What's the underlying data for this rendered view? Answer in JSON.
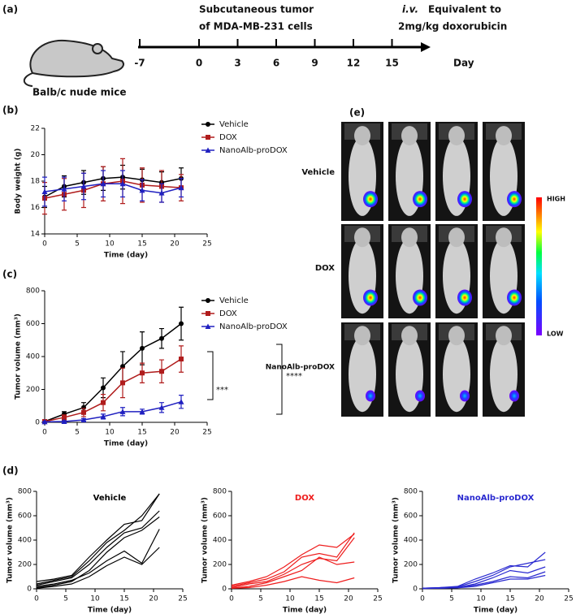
{
  "panel_labels": [
    "(a)",
    "(b)",
    "(c)",
    "(d)",
    "(e)"
  ],
  "timeline": {
    "tumor_line1": "Subcutaneous tumor",
    "tumor_line2": "of MDA-MB-231 cells",
    "iv": "i.v.",
    "iv_rest": "Equivalent to",
    "dose": "2mg/kg doxorubicin",
    "mouse": "Balb/c nude mice",
    "unit": "Day",
    "ticks": [
      -7,
      0,
      3,
      6,
      9,
      12,
      15
    ]
  },
  "chart_data": [
    {
      "type": "line",
      "xlabel": "Time (day)",
      "ylabel": "Body weight (g)",
      "x": [
        0,
        3,
        6,
        9,
        12,
        15,
        18,
        21
      ],
      "xlim": [
        0,
        25
      ],
      "xticks": [
        0,
        5,
        10,
        15,
        20,
        25
      ],
      "ylim": [
        14,
        22
      ],
      "yticks": [
        14,
        16,
        18,
        20,
        22
      ],
      "legend": true,
      "series": [
        {
          "name": "Vehicle",
          "color": "#000000",
          "marker": "circle",
          "values": [
            16.8,
            17.6,
            17.9,
            18.2,
            18.3,
            18.1,
            17.9,
            18.2
          ],
          "errors": [
            0.8,
            0.8,
            0.9,
            0.9,
            0.9,
            0.8,
            0.8,
            0.8
          ]
        },
        {
          "name": "DOX",
          "color": "#b01c1c",
          "marker": "square",
          "values": [
            16.7,
            17.0,
            17.3,
            17.8,
            18.0,
            17.7,
            17.6,
            17.5
          ],
          "errors": [
            1.2,
            1.2,
            1.3,
            1.3,
            1.7,
            1.3,
            1.2,
            1.0
          ]
        },
        {
          "name": "NanoAlb-proDOX",
          "color": "#2020c0",
          "marker": "triangle",
          "values": [
            17.2,
            17.4,
            17.6,
            17.8,
            17.8,
            17.3,
            17.1,
            17.5
          ],
          "errors": [
            1.1,
            0.9,
            1.0,
            1.0,
            1.0,
            0.8,
            0.7,
            0.7
          ]
        }
      ]
    },
    {
      "type": "line",
      "xlabel": "Time (day)",
      "ylabel": "Tumor volume (mm³)",
      "x": [
        0,
        3,
        6,
        9,
        12,
        15,
        18,
        21
      ],
      "xlim": [
        0,
        25
      ],
      "xticks": [
        0,
        5,
        10,
        15,
        20,
        25
      ],
      "ylim": [
        0,
        800
      ],
      "yticks": [
        0,
        200,
        400,
        600,
        800
      ],
      "legend": true,
      "annotations": [
        "***",
        "****"
      ],
      "series": [
        {
          "name": "Vehicle",
          "color": "#000000",
          "marker": "circle",
          "values": [
            5,
            50,
            90,
            210,
            340,
            450,
            510,
            600
          ],
          "errors": [
            5,
            15,
            30,
            60,
            90,
            100,
            60,
            100
          ]
        },
        {
          "name": "DOX",
          "color": "#b01c1c",
          "marker": "square",
          "values": [
            5,
            30,
            60,
            120,
            240,
            300,
            310,
            385
          ],
          "errors": [
            3,
            15,
            25,
            50,
            90,
            60,
            70,
            80
          ]
        },
        {
          "name": "NanoAlb-proDOX",
          "color": "#2020c0",
          "marker": "triangle",
          "values": [
            3,
            5,
            15,
            35,
            65,
            65,
            90,
            125
          ],
          "errors": [
            2,
            5,
            8,
            15,
            25,
            15,
            30,
            40
          ]
        }
      ]
    },
    {
      "type": "line",
      "title": "Vehicle",
      "color": "#000000",
      "xlabel": "Time (day)",
      "ylabel": "Tumor volume (mm³)",
      "x": [
        0,
        3,
        6,
        9,
        12,
        15,
        18,
        21
      ],
      "xlim": [
        0,
        25
      ],
      "xticks": [
        0,
        5,
        10,
        15,
        20,
        25
      ],
      "ylim": [
        0,
        800
      ],
      "yticks": [
        0,
        200,
        400,
        600,
        800
      ],
      "series": [
        {
          "values": [
            60,
            80,
            110,
            260,
            400,
            530,
            560,
            780
          ]
        },
        {
          "values": [
            40,
            70,
            100,
            230,
            380,
            480,
            600,
            780
          ]
        },
        {
          "values": [
            30,
            60,
            90,
            200,
            340,
            460,
            500,
            640
          ]
        },
        {
          "values": [
            10,
            30,
            60,
            150,
            300,
            420,
            480,
            590
          ]
        },
        {
          "values": [
            20,
            40,
            70,
            130,
            230,
            310,
            210,
            490
          ]
        },
        {
          "values": [
            5,
            20,
            40,
            100,
            190,
            260,
            200,
            340
          ]
        }
      ]
    },
    {
      "type": "line",
      "title": "DOX",
      "color": "#ee1c1c",
      "xlabel": "Time (day)",
      "ylabel": "Tumor volume (mm³)",
      "x": [
        0,
        3,
        6,
        9,
        12,
        15,
        18,
        21
      ],
      "xlim": [
        0,
        25
      ],
      "xticks": [
        0,
        5,
        10,
        15,
        20,
        25
      ],
      "ylim": [
        0,
        800
      ],
      "yticks": [
        0,
        200,
        400,
        600,
        800
      ],
      "series": [
        {
          "values": [
            30,
            60,
            100,
            180,
            280,
            360,
            340,
            450
          ]
        },
        {
          "values": [
            20,
            50,
            80,
            140,
            260,
            290,
            260,
            460
          ]
        },
        {
          "values": [
            10,
            40,
            60,
            120,
            200,
            250,
            230,
            420
          ]
        },
        {
          "values": [
            5,
            20,
            50,
            100,
            150,
            260,
            200,
            220
          ]
        },
        {
          "values": [
            5,
            10,
            30,
            60,
            100,
            70,
            50,
            90
          ]
        }
      ]
    },
    {
      "type": "line",
      "title": "NanoAlb-proDOX",
      "color": "#2a2ad0",
      "xlabel": "Time (day)",
      "ylabel": "Tumor volume (mm³)",
      "x": [
        0,
        3,
        6,
        9,
        12,
        15,
        18,
        21
      ],
      "xlim": [
        0,
        25
      ],
      "xticks": [
        0,
        5,
        10,
        15,
        20,
        25
      ],
      "ylim": [
        0,
        800
      ],
      "yticks": [
        0,
        200,
        400,
        600,
        800
      ],
      "series": [
        {
          "values": [
            5,
            10,
            20,
            80,
            130,
            190,
            180,
            300
          ]
        },
        {
          "values": [
            5,
            10,
            15,
            60,
            110,
            180,
            210,
            240
          ]
        },
        {
          "values": [
            3,
            8,
            10,
            40,
            90,
            150,
            130,
            180
          ]
        },
        {
          "values": [
            3,
            5,
            10,
            30,
            60,
            100,
            90,
            140
          ]
        },
        {
          "values": [
            2,
            5,
            8,
            20,
            50,
            80,
            80,
            110
          ]
        }
      ]
    }
  ],
  "imaging": {
    "rows": [
      "Vehicle",
      "DOX",
      "NanoAlb-proDOX"
    ],
    "high": "HIGH",
    "low": "LOW"
  }
}
